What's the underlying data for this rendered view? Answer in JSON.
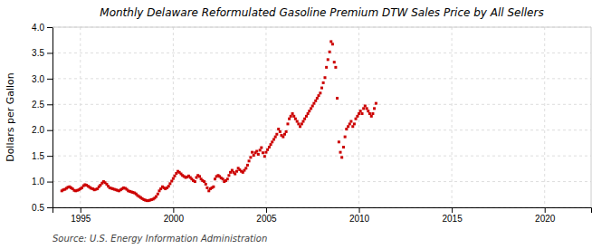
{
  "chart_data": {
    "type": "scatter",
    "title": "Monthly Delaware Reformulated Gasoline Premium DTW Sales Price by All Sellers",
    "ylabel": "Dollars per Gallon",
    "annotations": [
      "Source: U.S. Energy Information Administration"
    ],
    "color": "#cc0000",
    "marker": "square",
    "grid": true,
    "xlim": [
      1993.5,
      2022.5
    ],
    "ylim": [
      0.5,
      4.0
    ],
    "xticks": [
      1995,
      2000,
      2005,
      2010,
      2015,
      2020
    ],
    "yticks": [
      0.5,
      {
        "value": 1.0,
        "label": "1.0"
      },
      1.5,
      {
        "value": 2.0,
        "label": "2.0"
      },
      2.5,
      {
        "value": 3.0,
        "label": "3.0"
      },
      3.5,
      {
        "value": 4.0,
        "label": "4.0"
      }
    ],
    "x": [
      1994.0,
      1994.08,
      1994.17,
      1994.25,
      1994.33,
      1994.42,
      1994.5,
      1994.58,
      1994.67,
      1994.75,
      1994.83,
      1994.92,
      1995.0,
      1995.08,
      1995.17,
      1995.25,
      1995.33,
      1995.42,
      1995.5,
      1995.58,
      1995.67,
      1995.75,
      1995.83,
      1995.92,
      1996.0,
      1996.08,
      1996.17,
      1996.25,
      1996.33,
      1996.42,
      1996.5,
      1996.58,
      1996.67,
      1996.75,
      1996.83,
      1996.92,
      1997.0,
      1997.08,
      1997.17,
      1997.25,
      1997.33,
      1997.42,
      1997.5,
      1997.58,
      1997.67,
      1997.75,
      1997.83,
      1997.92,
      1998.0,
      1998.08,
      1998.17,
      1998.25,
      1998.33,
      1998.42,
      1998.5,
      1998.58,
      1998.67,
      1998.75,
      1998.83,
      1998.92,
      1999.0,
      1999.08,
      1999.17,
      1999.25,
      1999.33,
      1999.42,
      1999.5,
      1999.58,
      1999.67,
      1999.75,
      1999.83,
      1999.92,
      2000.0,
      2000.08,
      2000.17,
      2000.25,
      2000.33,
      2000.42,
      2000.5,
      2000.58,
      2000.67,
      2000.75,
      2000.83,
      2000.92,
      2001.0,
      2001.08,
      2001.17,
      2001.25,
      2001.33,
      2001.42,
      2001.5,
      2001.58,
      2001.67,
      2001.75,
      2001.83,
      2001.92,
      2002.0,
      2002.08,
      2002.17,
      2002.25,
      2002.33,
      2002.42,
      2002.5,
      2002.58,
      2002.67,
      2002.75,
      2002.83,
      2002.92,
      2003.0,
      2003.08,
      2003.17,
      2003.25,
      2003.33,
      2003.42,
      2003.5,
      2003.58,
      2003.67,
      2003.75,
      2003.83,
      2003.92,
      2004.0,
      2004.08,
      2004.17,
      2004.25,
      2004.33,
      2004.42,
      2004.5,
      2004.58,
      2004.67,
      2004.75,
      2004.83,
      2004.92,
      2005.0,
      2005.08,
      2005.17,
      2005.25,
      2005.33,
      2005.42,
      2005.5,
      2005.58,
      2005.67,
      2005.75,
      2005.83,
      2005.92,
      2006.0,
      2006.08,
      2006.17,
      2006.25,
      2006.33,
      2006.42,
      2006.5,
      2006.58,
      2006.67,
      2006.75,
      2006.83,
      2006.92,
      2007.0,
      2007.08,
      2007.17,
      2007.25,
      2007.33,
      2007.42,
      2007.5,
      2007.58,
      2007.67,
      2007.75,
      2007.83,
      2007.92,
      2008.0,
      2008.08,
      2008.17,
      2008.25,
      2008.33,
      2008.42,
      2008.5,
      2008.58,
      2008.67,
      2008.75,
      2008.83,
      2008.92,
      2009.0,
      2009.08,
      2009.17,
      2009.25,
      2009.33,
      2009.42,
      2009.5,
      2009.58,
      2009.67,
      2009.75,
      2009.83,
      2009.92,
      2010.0,
      2010.08,
      2010.17,
      2010.25,
      2010.33,
      2010.42,
      2010.5,
      2010.58,
      2010.67,
      2010.75,
      2010.83,
      2010.92
    ],
    "values": [
      0.82,
      0.84,
      0.85,
      0.87,
      0.89,
      0.9,
      0.88,
      0.86,
      0.83,
      0.82,
      0.83,
      0.84,
      0.86,
      0.88,
      0.92,
      0.94,
      0.93,
      0.91,
      0.89,
      0.87,
      0.86,
      0.84,
      0.85,
      0.86,
      0.9,
      0.93,
      0.97,
      1.0,
      0.98,
      0.95,
      0.91,
      0.88,
      0.87,
      0.86,
      0.85,
      0.84,
      0.83,
      0.82,
      0.84,
      0.86,
      0.88,
      0.87,
      0.85,
      0.82,
      0.81,
      0.8,
      0.79,
      0.78,
      0.76,
      0.73,
      0.71,
      0.69,
      0.67,
      0.65,
      0.64,
      0.63,
      0.63,
      0.64,
      0.65,
      0.66,
      0.68,
      0.71,
      0.76,
      0.82,
      0.86,
      0.9,
      0.88,
      0.86,
      0.88,
      0.91,
      0.96,
      1.01,
      1.06,
      1.11,
      1.16,
      1.2,
      1.18,
      1.15,
      1.12,
      1.1,
      1.08,
      1.09,
      1.11,
      1.08,
      1.05,
      1.02,
      1.0,
      1.08,
      1.12,
      1.1,
      1.05,
      1.02,
      1.0,
      0.95,
      0.88,
      0.82,
      0.86,
      0.88,
      0.9,
      1.05,
      1.1,
      1.12,
      1.1,
      1.07,
      1.05,
      1.0,
      1.02,
      1.05,
      1.12,
      1.18,
      1.22,
      1.18,
      1.15,
      1.2,
      1.26,
      1.23,
      1.2,
      1.18,
      1.22,
      1.26,
      1.32,
      1.4,
      1.47,
      1.57,
      1.51,
      1.56,
      1.59,
      1.53,
      1.61,
      1.66,
      1.56,
      1.49,
      1.57,
      1.62,
      1.67,
      1.72,
      1.77,
      1.82,
      1.87,
      1.92,
      2.02,
      1.97,
      1.9,
      1.87,
      1.92,
      1.97,
      2.12,
      2.22,
      2.27,
      2.32,
      2.27,
      2.22,
      2.17,
      2.12,
      2.07,
      2.12,
      2.17,
      2.22,
      2.27,
      2.32,
      2.37,
      2.42,
      2.47,
      2.52,
      2.57,
      2.62,
      2.67,
      2.72,
      2.82,
      2.92,
      3.02,
      3.22,
      3.37,
      3.52,
      3.72,
      3.67,
      3.32,
      3.22,
      2.62,
      1.77,
      1.57,
      1.47,
      1.67,
      1.87,
      2.02,
      2.07,
      2.12,
      2.17,
      2.07,
      2.12,
      2.22,
      2.27,
      2.32,
      2.37,
      2.32,
      2.42,
      2.47,
      2.42,
      2.37,
      2.32,
      2.27,
      2.32,
      2.42,
      2.52
    ]
  }
}
